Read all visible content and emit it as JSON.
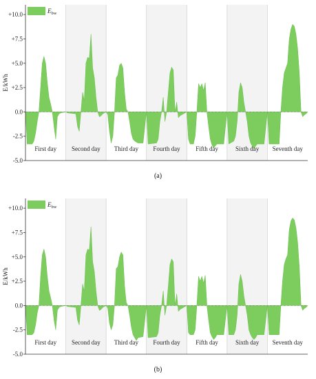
{
  "chart_data": [
    {
      "type": "area",
      "caption": "(a)",
      "ylabel": "E/kWh",
      "legend": {
        "label": "E",
        "subscript": "bw",
        "color": "#7ccd5e",
        "placement": "top-left"
      },
      "ylim": [
        -5,
        11
      ],
      "yticks": [
        -5,
        -2.5,
        0,
        2.5,
        5,
        7.5,
        10
      ],
      "ytick_labels": [
        "-5.0",
        "-2.5",
        "0.0",
        "+2.5",
        "+5.0",
        "+7.5",
        "+10.0"
      ],
      "days": [
        "First day",
        "Second day",
        "Third day",
        "Fourth day",
        "Fifth day",
        "Sixth day",
        "Seventh day"
      ],
      "xlim": [
        0,
        168
      ],
      "series": [
        {
          "points": [
            [
              0,
              0
            ],
            [
              1,
              -3.3
            ],
            [
              4,
              -3.3
            ],
            [
              5,
              -3.0
            ],
            [
              6,
              -2.2
            ],
            [
              7,
              -1.0
            ],
            [
              8,
              0
            ],
            [
              9,
              2.5
            ],
            [
              10,
              5.0
            ],
            [
              11,
              5.7
            ],
            [
              12,
              5.0
            ],
            [
              13,
              3.0
            ],
            [
              14,
              1.5
            ],
            [
              15,
              0.8
            ],
            [
              16,
              0
            ],
            [
              17,
              -1.5
            ],
            [
              18,
              -2.8
            ],
            [
              19,
              -0.5
            ],
            [
              20,
              -0.2
            ],
            [
              21,
              -0.1
            ],
            [
              24,
              0
            ],
            [
              25,
              -0.1
            ],
            [
              30,
              -0.2
            ],
            [
              31,
              -1.5
            ],
            [
              32,
              -2.0
            ],
            [
              33,
              0
            ],
            [
              34,
              2.0
            ],
            [
              35,
              1.2
            ],
            [
              36,
              5.0
            ],
            [
              37,
              5.6
            ],
            [
              38,
              5.5
            ],
            [
              39,
              8.0
            ],
            [
              40,
              4.5
            ],
            [
              41,
              3.5
            ],
            [
              42,
              1.5
            ],
            [
              43,
              0
            ],
            [
              44,
              -0.5
            ],
            [
              45,
              -0.4
            ],
            [
              46,
              -0.2
            ],
            [
              47,
              -0.1
            ],
            [
              48,
              0
            ],
            [
              49,
              -0.3
            ],
            [
              50,
              -2.0
            ],
            [
              51,
              -3.2
            ],
            [
              52,
              -2.5
            ],
            [
              53,
              0
            ],
            [
              54,
              3.5
            ],
            [
              55,
              3.8
            ],
            [
              56,
              4.8
            ],
            [
              57,
              5.0
            ],
            [
              58,
              4.5
            ],
            [
              59,
              2.0
            ],
            [
              60,
              0.3
            ],
            [
              61,
              0
            ],
            [
              62,
              -1.0
            ],
            [
              63,
              -2.2
            ],
            [
              64,
              -2.8
            ],
            [
              65,
              -3.0
            ],
            [
              67,
              -3.2
            ],
            [
              70,
              -3.2
            ],
            [
              72,
              0
            ],
            [
              73,
              -3.3
            ],
            [
              78,
              -3.2
            ],
            [
              79,
              -2.8
            ],
            [
              80,
              -1.0
            ],
            [
              81,
              0
            ],
            [
              82,
              1.5
            ],
            [
              83,
              -1.0
            ],
            [
              84,
              0
            ],
            [
              85,
              2.0
            ],
            [
              86,
              4.0
            ],
            [
              87,
              4.6
            ],
            [
              88,
              4.3
            ],
            [
              89,
              0
            ],
            [
              90,
              1.0
            ],
            [
              91,
              -0.6
            ],
            [
              92,
              -0.4
            ],
            [
              93,
              -0.3
            ],
            [
              94,
              -0.2
            ],
            [
              95,
              -0.1
            ],
            [
              96,
              0
            ],
            [
              97,
              -2.8
            ],
            [
              98,
              -3.3
            ],
            [
              100,
              -3.3
            ],
            [
              101,
              -2.5
            ],
            [
              102,
              0
            ],
            [
              103,
              2.9
            ],
            [
              104,
              2.5
            ],
            [
              105,
              2.9
            ],
            [
              106,
              2.2
            ],
            [
              107,
              3.0
            ],
            [
              108,
              0
            ],
            [
              109,
              -1.5
            ],
            [
              110,
              -2.8
            ],
            [
              111,
              -3.4
            ],
            [
              112,
              -3.7
            ],
            [
              113,
              -3.5
            ],
            [
              114,
              -3.3
            ],
            [
              118,
              -3.3
            ],
            [
              120,
              0
            ],
            [
              121,
              -3.3
            ],
            [
              124,
              -3.0
            ],
            [
              125,
              -2.5
            ],
            [
              126,
              -1.0
            ],
            [
              127,
              2.0
            ],
            [
              128,
              3.0
            ],
            [
              129,
              2.5
            ],
            [
              130,
              1.0
            ],
            [
              131,
              0
            ],
            [
              132,
              -1.0
            ],
            [
              133,
              -2.5
            ],
            [
              134,
              -3.2
            ],
            [
              135,
              -3.5
            ],
            [
              136,
              -3.8
            ],
            [
              137,
              -3.5
            ],
            [
              138,
              -3.3
            ],
            [
              140,
              -3.3
            ],
            [
              142,
              -3.3
            ],
            [
              144,
              0
            ],
            [
              145,
              -3.3
            ],
            [
              148,
              -3.3
            ],
            [
              151,
              -3.3
            ],
            [
              152,
              0
            ],
            [
              153,
              2.5
            ],
            [
              154,
              4.0
            ],
            [
              155,
              4.5
            ],
            [
              156,
              5.0
            ],
            [
              157,
              7.5
            ],
            [
              158,
              8.5
            ],
            [
              159,
              9.0
            ],
            [
              160,
              8.8
            ],
            [
              161,
              8.0
            ],
            [
              162,
              6.5
            ],
            [
              163,
              4.0
            ],
            [
              164,
              0
            ],
            [
              165,
              -0.5
            ],
            [
              166,
              -0.3
            ],
            [
              167,
              -0.2
            ],
            [
              168,
              0
            ]
          ]
        }
      ]
    },
    {
      "type": "area",
      "caption": "(b)",
      "ylabel": "E/kWh",
      "legend": {
        "label": "E",
        "subscript": "bw",
        "color": "#7ccd5e",
        "placement": "top-left"
      },
      "ylim": [
        -5,
        11
      ],
      "yticks": [
        -5,
        -2.5,
        0,
        2.5,
        5,
        7.5,
        10
      ],
      "ytick_labels": [
        "-5.0",
        "-2.5",
        "0.0",
        "+2.5",
        "+5.0",
        "+7.5",
        "+10.0"
      ],
      "days": [
        "First day",
        "Second day",
        "Third day",
        "Fourth day",
        "Fifth day",
        "Sixth day",
        "Seventh day"
      ],
      "xlim": [
        0,
        168
      ],
      "series": [
        {
          "points": [
            [
              0,
              0
            ],
            [
              1,
              -3.0
            ],
            [
              4,
              -3.0
            ],
            [
              5,
              -2.8
            ],
            [
              6,
              -2.0
            ],
            [
              7,
              -0.8
            ],
            [
              8,
              0
            ],
            [
              9,
              3.0
            ],
            [
              10,
              5.2
            ],
            [
              11,
              5.8
            ],
            [
              12,
              5.0
            ],
            [
              13,
              3.0
            ],
            [
              14,
              1.5
            ],
            [
              15,
              0.8
            ],
            [
              16,
              0
            ],
            [
              17,
              -1.5
            ],
            [
              18,
              -2.5
            ],
            [
              19,
              -0.5
            ],
            [
              20,
              -0.2
            ],
            [
              21,
              -0.1
            ],
            [
              24,
              0
            ],
            [
              25,
              -0.1
            ],
            [
              30,
              -0.2
            ],
            [
              31,
              -1.5
            ],
            [
              32,
              -2.0
            ],
            [
              33,
              0
            ],
            [
              34,
              2.2
            ],
            [
              35,
              1.5
            ],
            [
              36,
              5.2
            ],
            [
              37,
              5.8
            ],
            [
              38,
              5.7
            ],
            [
              39,
              8.1
            ],
            [
              40,
              4.5
            ],
            [
              41,
              3.5
            ],
            [
              42,
              1.5
            ],
            [
              43,
              0
            ],
            [
              44,
              -0.5
            ],
            [
              45,
              -0.4
            ],
            [
              46,
              -0.2
            ],
            [
              47,
              -0.1
            ],
            [
              48,
              0
            ],
            [
              49,
              -0.3
            ],
            [
              50,
              -1.8
            ],
            [
              51,
              -2.5
            ],
            [
              52,
              -2.0
            ],
            [
              53,
              0
            ],
            [
              54,
              3.8
            ],
            [
              55,
              4.0
            ],
            [
              56,
              5.0
            ],
            [
              57,
              5.5
            ],
            [
              58,
              5.2
            ],
            [
              59,
              2.0
            ],
            [
              60,
              0.3
            ],
            [
              61,
              0
            ],
            [
              62,
              -1.0
            ],
            [
              63,
              -2.2
            ],
            [
              64,
              -3.0
            ],
            [
              65,
              -3.3
            ],
            [
              66,
              -3.6
            ],
            [
              67,
              -3.3
            ],
            [
              70,
              -3.2
            ],
            [
              72,
              0
            ],
            [
              73,
              -3.3
            ],
            [
              78,
              -3.2
            ],
            [
              79,
              -2.8
            ],
            [
              80,
              -1.0
            ],
            [
              81,
              0
            ],
            [
              82,
              1.5
            ],
            [
              83,
              -1.0
            ],
            [
              84,
              0
            ],
            [
              85,
              2.0
            ],
            [
              86,
              4.2
            ],
            [
              87,
              4.8
            ],
            [
              88,
              4.5
            ],
            [
              89,
              0
            ],
            [
              90,
              1.2
            ],
            [
              91,
              -0.6
            ],
            [
              92,
              -0.4
            ],
            [
              93,
              -0.3
            ],
            [
              94,
              -0.2
            ],
            [
              95,
              -0.1
            ],
            [
              96,
              0
            ],
            [
              97,
              -2.8
            ],
            [
              98,
              -3.0
            ],
            [
              100,
              -3.0
            ],
            [
              101,
              -2.5
            ],
            [
              102,
              0
            ],
            [
              103,
              3.0
            ],
            [
              104,
              2.5
            ],
            [
              105,
              3.0
            ],
            [
              106,
              2.3
            ],
            [
              107,
              3.1
            ],
            [
              108,
              0
            ],
            [
              109,
              -1.5
            ],
            [
              110,
              -2.8
            ],
            [
              111,
              -3.2
            ],
            [
              112,
              -3.5
            ],
            [
              113,
              -3.3
            ],
            [
              114,
              -3.0
            ],
            [
              118,
              -3.0
            ],
            [
              120,
              0
            ],
            [
              121,
              -3.0
            ],
            [
              124,
              -3.0
            ],
            [
              125,
              -2.5
            ],
            [
              126,
              -1.0
            ],
            [
              127,
              2.2
            ],
            [
              128,
              3.2
            ],
            [
              129,
              2.5
            ],
            [
              130,
              1.0
            ],
            [
              131,
              0
            ],
            [
              132,
              -1.0
            ],
            [
              133,
              -2.5
            ],
            [
              134,
              -3.0
            ],
            [
              135,
              -3.3
            ],
            [
              136,
              -3.5
            ],
            [
              137,
              -3.3
            ],
            [
              138,
              -3.0
            ],
            [
              140,
              -3.0
            ],
            [
              142,
              -3.0
            ],
            [
              144,
              0
            ],
            [
              145,
              -3.0
            ],
            [
              148,
              -3.0
            ],
            [
              151,
              -3.0
            ],
            [
              152,
              0
            ],
            [
              153,
              2.5
            ],
            [
              154,
              4.2
            ],
            [
              155,
              4.8
            ],
            [
              156,
              5.2
            ],
            [
              157,
              7.8
            ],
            [
              158,
              8.7
            ],
            [
              159,
              9.0
            ],
            [
              160,
              8.8
            ],
            [
              161,
              8.0
            ],
            [
              162,
              6.5
            ],
            [
              163,
              4.0
            ],
            [
              164,
              0
            ],
            [
              165,
              -0.5
            ],
            [
              166,
              -0.3
            ],
            [
              167,
              -0.2
            ],
            [
              168,
              0
            ]
          ]
        }
      ]
    }
  ]
}
